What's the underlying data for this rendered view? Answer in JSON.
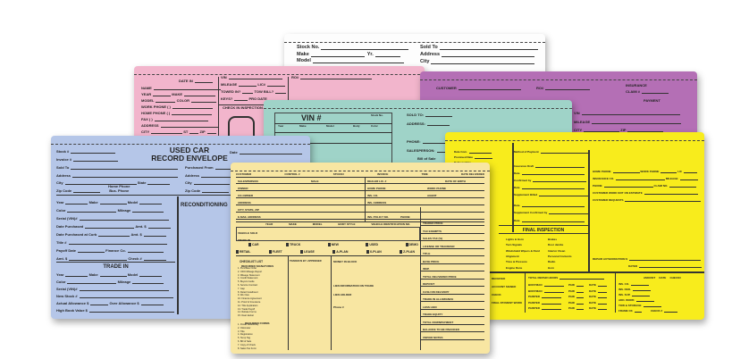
{
  "white_envelope": {
    "fields_left": [
      "Stock No.",
      "Make",
      "Model"
    ],
    "yr_label": "Yr.",
    "fields_right": [
      "Sold To",
      "Address",
      "City"
    ]
  },
  "pink_envelope": {
    "date_in": "DATE IN",
    "fields": [
      "NAME",
      "YEAR",
      "MODEL",
      "WORK PHONE (    )",
      "HOME PHONE (    )",
      "FAX (    )",
      "ADDRESS",
      "CITY"
    ],
    "make": "MAKE",
    "color": "COLOR",
    "st": "ST",
    "zip": "ZIP",
    "right_fields": [
      "VIN",
      "MILEAGE",
      "TOWED IN?",
      "KEYS?"
    ],
    "lic": "LIC#",
    "tow_bill": "TOW BILL?",
    "pro_date": "PRO DATE",
    "check_in": "CHECK IN INSPECTION",
    "ro": "RO#"
  },
  "purple_envelope": {
    "fields": [
      "CUSTOMER",
      "RO#",
      "INSURANCE",
      "CLAIM #",
      "PAYMENT",
      "VIN",
      "MILEAGE",
      "CITY",
      "ZIP"
    ]
  },
  "teal_envelope": {
    "vin": "VIN #",
    "cells": [
      "Year",
      "Make",
      "Model",
      "Body",
      "Color",
      "Stock No."
    ],
    "right_fields": [
      "SOLD TO:",
      "ADDRESS:",
      "PHONE:",
      "SALESPERSON:"
    ],
    "bill_of_sale": "Bill of Sale"
  },
  "blue_envelope": {
    "title_line1": "USED CAR",
    "title_line2": "RECORD ENVELOPE",
    "top_left": [
      "Stock #",
      "Invoice #",
      "Sold To",
      "Address",
      "City",
      "Zip Code"
    ],
    "state": "State",
    "home_phone": "Home Phone",
    "bus_phone": "Bus. Phone",
    "date": "Date",
    "top_right": [
      "Purchased From",
      "Address",
      "City",
      "Zip Code"
    ],
    "vehicle": [
      "Year",
      "Color",
      "Serial (VIN)#",
      "Date Purchased",
      "Date Purchased at Curb",
      "Title #",
      "Payoff Date",
      "Amt. $"
    ],
    "make": "Make",
    "model": "Model",
    "mileage": "Mileage",
    "amt": "Amt. $",
    "finance_co": "Finance Co.",
    "check": "Check #",
    "trade_in": "TRADE IN",
    "trade_fields": [
      "Year",
      "Color",
      "Serial (VIN)#",
      "New Stock #",
      "Actual Allowance $",
      "High Book Value $"
    ],
    "over_allowance": "Over Allowance $",
    "reconditioning": "RECONDITIONING"
  },
  "yellow_envelope": {
    "left_fields": [
      "Date Com.",
      "Promised Date",
      "Delivery Date"
    ],
    "payment": [
      "Method of Payment",
      "Insurance Draft",
      "Date",
      "Confirmed by",
      "Date",
      "Supplement Billed",
      "Date",
      "Supplement Confirmed by",
      "Date"
    ],
    "right_fields": [
      "HOME PHONE",
      "INSURANCE CO.",
      "PHONE",
      "CUSTOMER WORK NOT ON ESTIMATE",
      "CUSTOMER REQUESTS"
    ],
    "work_phone": "WORK PHONE",
    "lic": "LIC",
    "mileage": "MILEAGE",
    "claim_no": "CLAIM NO.",
    "final_inspection": "FINAL INSPECTION",
    "checks_a": [
      "Lights & Horn",
      "Turn Signals",
      "Windshield Wipers & Fluid",
      "Alignment",
      "Tires & Pressure",
      "Engine Runs"
    ],
    "checks_b": [
      "Brakes",
      "Door Jambs",
      "Interior Clean",
      "Personal Contents",
      "Radio",
      "Horn"
    ],
    "repair_auth": "REPAIR AUTHORIZATION $",
    "dated": "DATED",
    "total_repair": "TOTAL REPAIR HOURS",
    "labor_rows": [
      "BODYMAN",
      "BODYMAN",
      "PAINTER",
      "PAINTER",
      "PAINTER"
    ],
    "paid": "PAID",
    "date": "DATE",
    "cols": [
      "AMOUNT",
      "DATE",
      "CHECK#"
    ],
    "payments": [
      "INS. CO.",
      "INS. DED.",
      "INS. SUP.",
      "ADD. WORK",
      "TOW & STORAGE",
      "FRAME CK",
      "CHECK #"
    ],
    "status": [
      "RECEIVED",
      "ACCOUNT SIGNED",
      "CHECK",
      "FINAL PAYMENT WORK"
    ]
  },
  "cream_envelope": {
    "header": [
      "CUSTOMER",
      "CONTROL #",
      "STOCK#",
      "INVOICE",
      "TIME",
      "DATE DELIVERED"
    ],
    "rows_left": [
      "SALESPERSON",
      "OWNER",
      "CO-OWNER",
      "ADDRESS",
      "CITY, STATE, ZIP",
      "E-MAIL ADDRESS"
    ],
    "rows_right": [
      "DEALER LIC. #",
      "HOME PHONE",
      "INS. CO.",
      "INS. ADDRESS",
      "INS. POLICY NO."
    ],
    "work_phone": "WORK PHONE",
    "agent": "AGENT",
    "phone": "PHONE",
    "male": "MALE",
    "dob": "DATE OF BIRTH",
    "vehicle_cols": [
      "YEAR",
      "MAKE",
      "MODEL",
      "BODY STYLE",
      "VEHICLE IDENTIFICATION NO."
    ],
    "vehicle_rows": [
      "VEHICLE SOLD",
      "TRADE IN"
    ],
    "types": [
      "CAR",
      "TRUCK",
      "NEW",
      "USED",
      "DEMO"
    ],
    "types2": [
      "RETAIL",
      "FLEET",
      "LEASE",
      "A-PLAN",
      "X-PLAN",
      "Z-PLAN"
    ],
    "checklist": "CHECKLIST LIST",
    "required_signatures": "REQUIRED SIGNATURES",
    "required_forms": "REQUIRED FORMS",
    "docs_list": [
      "1. Purchase Order",
      "2. ODO Mileage Report",
      "3. Mileage Statement",
      "4. Credit Statement",
      "5. Buyers Guide",
      "6. Service Contract",
      "7. Gap",
      "8. Retail Installment",
      "9. We Owe",
      "10. Finance Agreement",
      "11. Proof of Insurance",
      "12. Title Application",
      "13. Trade Payoff",
      "14. Rebate Forms",
      "15. Deal Jacket"
    ],
    "docs_list2": [
      "1. Power of Attorney",
      "2. Odometer",
      "3. Title",
      "4. Registration",
      "5. Temp Tag",
      "6. Bill of Sale",
      "7. Copy of Check",
      "8. Sales Tax Form"
    ],
    "trade_in_appraisal": "TRADED IN BY / APPRAISER",
    "money_in": "MONEY IN BLOCK",
    "price_rows": [
      "TRADED PRICE",
      "TAX EXEMPTS",
      "SALES TAX (%)",
      "LICENSE OR TRANSFER",
      "TITLE",
      "BASE PRICE",
      "INSP.",
      "TOTAL DELIVERED PRICE",
      "DEPOSIT",
      "CASH ON DELIVERY",
      "TRADE IN ALLOWANCE",
      "LESS LIEN",
      "TRADE EQUITY",
      "TOTAL DOWNPAYMENT",
      "BALANCE TO BE FINANCED",
      "UNPAID NOTES"
    ],
    "lien_info": "LIEN INFORMATION ON TRADE",
    "lien_holder": "LIEN HOLDER",
    "ph": "Phone #"
  }
}
